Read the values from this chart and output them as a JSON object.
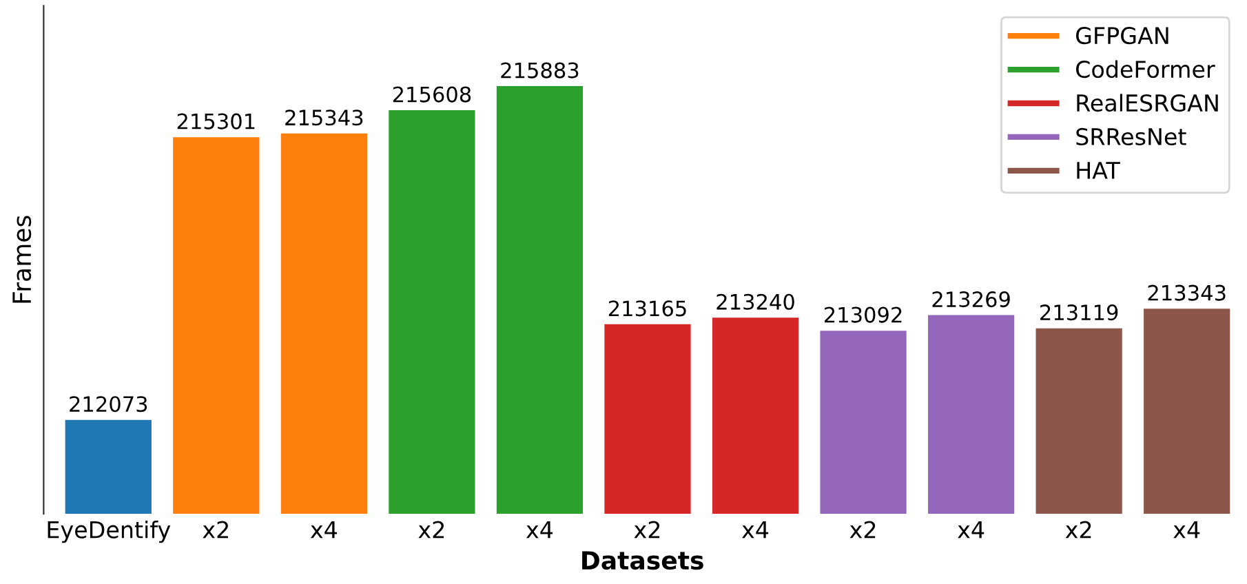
{
  "chart_data": {
    "type": "bar",
    "xlabel": "Datasets",
    "ylabel": "Frames",
    "categories": [
      "EyeDentify",
      "x2",
      "x4",
      "x2",
      "x4",
      "x2",
      "x4",
      "x2",
      "x4",
      "x2",
      "x4"
    ],
    "series": [
      {
        "color": "#1f77b4",
        "values": [
          212073,
          null,
          null,
          null,
          null,
          null,
          null,
          null,
          null,
          null,
          null
        ]
      },
      {
        "name": "GFPGAN",
        "color": "#ff7f0e",
        "values": [
          null,
          215301,
          215343,
          null,
          null,
          null,
          null,
          null,
          null,
          null,
          null
        ]
      },
      {
        "name": "CodeFormer",
        "color": "#2ca02c",
        "values": [
          null,
          null,
          null,
          215608,
          215883,
          null,
          null,
          null,
          null,
          null,
          null
        ]
      },
      {
        "name": "RealESRGAN",
        "color": "#d62728",
        "values": [
          null,
          null,
          null,
          null,
          null,
          213165,
          213240,
          null,
          null,
          null,
          null
        ]
      },
      {
        "name": "SRResNet",
        "color": "#9467bd",
        "values": [
          null,
          null,
          null,
          null,
          null,
          null,
          null,
          213092,
          213269,
          null,
          null
        ]
      },
      {
        "name": "HAT",
        "color": "#8c564b",
        "values": [
          null,
          null,
          null,
          null,
          null,
          null,
          null,
          null,
          null,
          213119,
          213343
        ]
      }
    ],
    "ylim": [
      211000,
      216800
    ],
    "data_labels": true,
    "grid": false,
    "legend": "top right",
    "tick_labels": "x"
  }
}
